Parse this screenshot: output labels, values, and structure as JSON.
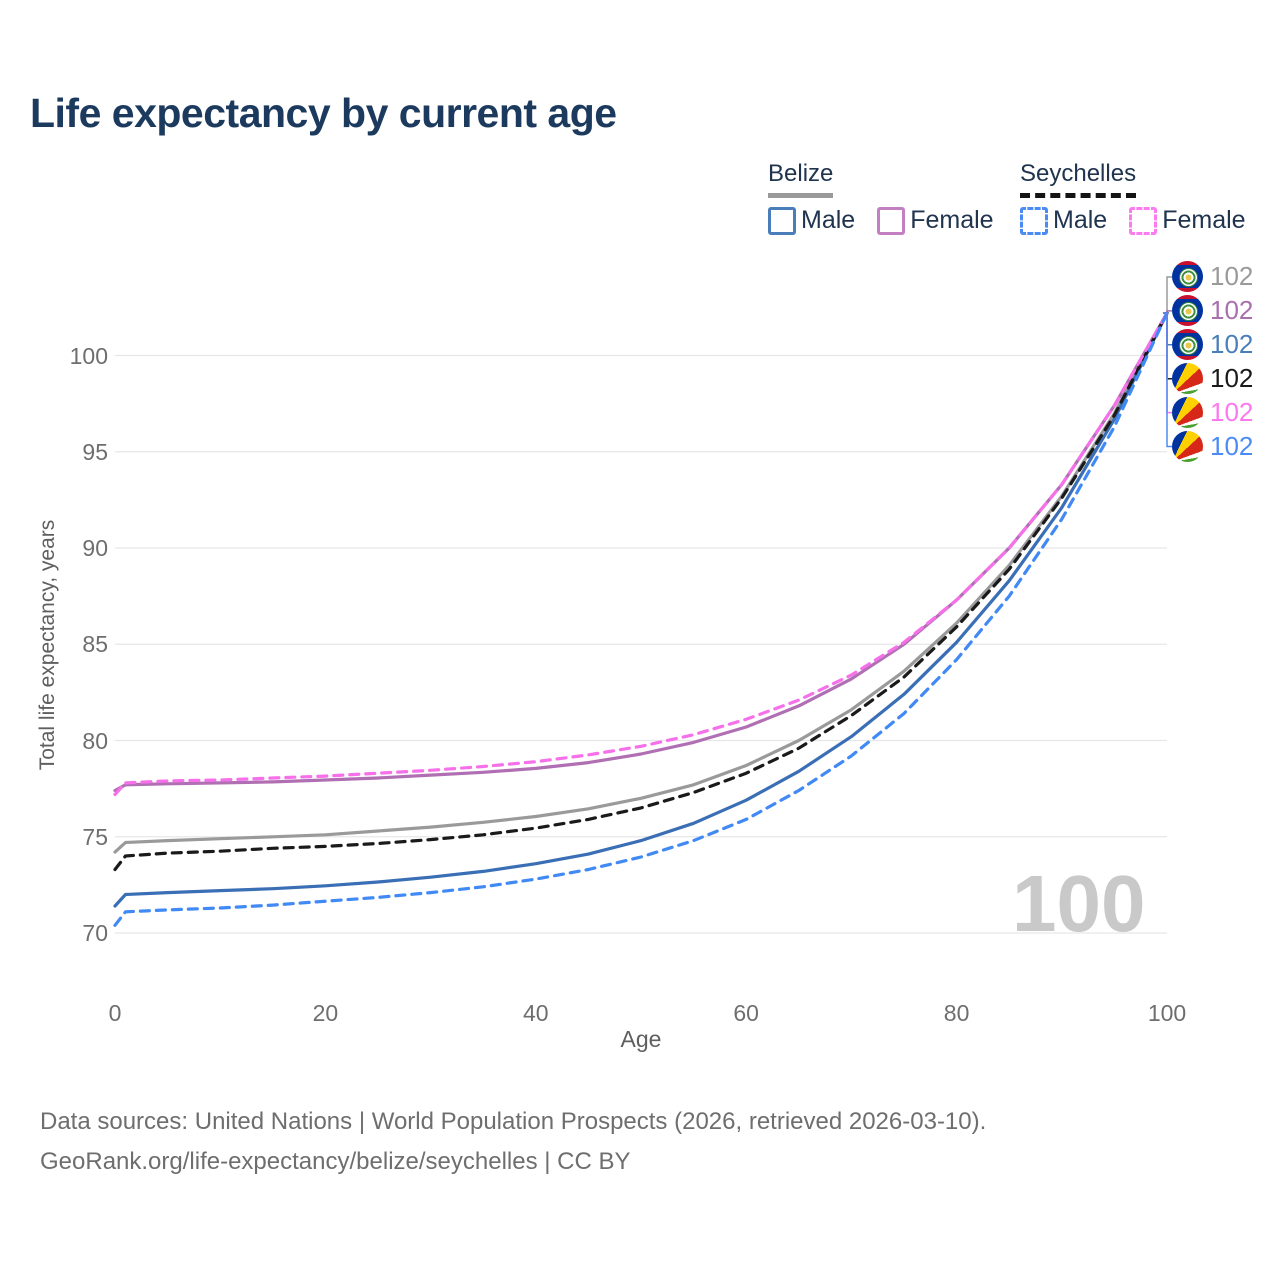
{
  "title": "Life expectancy by current age",
  "legend": {
    "groups": [
      {
        "country": "Belize",
        "line_style": "solid",
        "items": [
          {
            "label": "Male",
            "color": "#4a7ebb"
          },
          {
            "label": "Female",
            "color": "#c27fc2"
          }
        ]
      },
      {
        "country": "Seychelles",
        "line_style": "dashed",
        "items": [
          {
            "label": "Male",
            "color": "#4b8bf5"
          },
          {
            "label": "Female",
            "color": "#fc7bef"
          }
        ]
      }
    ]
  },
  "chart_data": {
    "type": "line",
    "title": "Life expectancy by current age",
    "xlabel": "Age",
    "ylabel": "Total life expectancy, years",
    "xlim": [
      0,
      100
    ],
    "ylim": [
      69,
      103
    ],
    "x_ticks": [
      0,
      20,
      40,
      60,
      80,
      100
    ],
    "y_ticks": [
      70,
      75,
      80,
      85,
      90,
      95,
      100
    ],
    "grid": "horizontal",
    "legend_position": "top-right",
    "x": [
      0,
      1,
      5,
      10,
      15,
      20,
      25,
      30,
      35,
      40,
      45,
      50,
      55,
      60,
      65,
      70,
      75,
      80,
      85,
      90,
      95,
      100
    ],
    "series": [
      {
        "id": "belize-total",
        "name": "Belize Both sexes",
        "color": "#9a9a9a",
        "dashed": false,
        "values": [
          74.2,
          74.7,
          74.8,
          74.9,
          75.0,
          75.1,
          75.3,
          75.5,
          75.75,
          76.05,
          76.45,
          77.0,
          77.7,
          78.7,
          80.0,
          81.6,
          83.6,
          86.1,
          89.1,
          92.7,
          97.0,
          102.2
        ]
      },
      {
        "id": "belize-female",
        "name": "Belize Female",
        "color": "#b06fb3",
        "dashed": false,
        "values": [
          77.4,
          77.7,
          77.75,
          77.8,
          77.85,
          77.95,
          78.05,
          78.2,
          78.35,
          78.55,
          78.85,
          79.3,
          79.9,
          80.7,
          81.8,
          83.2,
          85.0,
          87.3,
          90.0,
          93.3,
          97.4,
          102.2
        ]
      },
      {
        "id": "belize-male",
        "name": "Belize Male",
        "color": "#3a6eb5",
        "dashed": false,
        "values": [
          71.4,
          72.0,
          72.1,
          72.2,
          72.3,
          72.45,
          72.65,
          72.9,
          73.2,
          73.6,
          74.1,
          74.8,
          75.7,
          76.9,
          78.4,
          80.2,
          82.4,
          85.1,
          88.3,
          92.1,
          96.7,
          102.2
        ]
      },
      {
        "id": "seychelles-total",
        "name": "Seychelles Both sexes",
        "color": "#1a1a1a",
        "dashed": true,
        "values": [
          73.3,
          74.0,
          74.15,
          74.25,
          74.4,
          74.5,
          74.65,
          74.85,
          75.1,
          75.45,
          75.9,
          76.5,
          77.3,
          78.3,
          79.6,
          81.3,
          83.3,
          85.9,
          88.9,
          92.6,
          96.9,
          102.2
        ]
      },
      {
        "id": "seychelles-female",
        "name": "Seychelles Female",
        "color": "#f670ea",
        "dashed": true,
        "values": [
          77.2,
          77.8,
          77.9,
          77.95,
          78.05,
          78.15,
          78.3,
          78.45,
          78.65,
          78.9,
          79.25,
          79.7,
          80.3,
          81.1,
          82.1,
          83.4,
          85.1,
          87.3,
          90.0,
          93.3,
          97.4,
          102.2
        ]
      },
      {
        "id": "seychelles-male",
        "name": "Seychelles Male",
        "color": "#4189f4",
        "dashed": true,
        "values": [
          70.4,
          71.1,
          71.2,
          71.3,
          71.45,
          71.65,
          71.85,
          72.1,
          72.4,
          72.8,
          73.3,
          73.95,
          74.8,
          75.9,
          77.4,
          79.2,
          81.4,
          84.2,
          87.5,
          91.5,
          96.3,
          102.2
        ]
      }
    ],
    "end_labels": [
      {
        "value": "102",
        "flag": "belize",
        "color": "#9a9a9a"
      },
      {
        "value": "102",
        "flag": "belize",
        "color": "#a96fae"
      },
      {
        "value": "102",
        "flag": "belize",
        "color": "#4a7ebb"
      },
      {
        "value": "102",
        "flag": "seychelles",
        "color": "#1a1a1a"
      },
      {
        "value": "102",
        "flag": "seychelles",
        "color": "#fc78ef"
      },
      {
        "value": "102",
        "flag": "seychelles",
        "color": "#4b8bf5"
      }
    ]
  },
  "watermark_age": "100",
  "footer": {
    "line1": "Data sources: United Nations | World Population Prospects (2026, retrieved 2026-03-10).",
    "line2": "GeoRank.org/life-expectancy/belize/seychelles | CC BY"
  }
}
